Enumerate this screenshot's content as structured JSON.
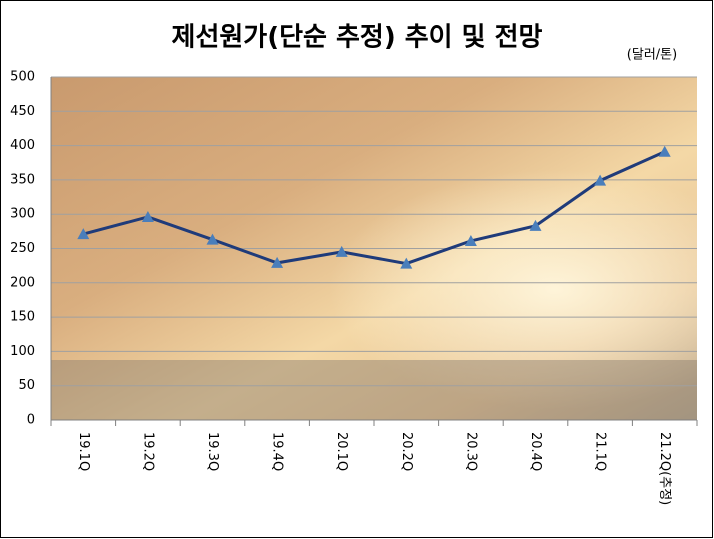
{
  "chart_data": {
    "type": "line",
    "title": "제선원가(단순 추정) 추이 및 전망",
    "unit_label": "(달러/톤)",
    "categories": [
      "19.1Q",
      "19.2Q",
      "19.3Q",
      "19.4Q",
      "20.1Q",
      "20.2Q",
      "20.3Q",
      "20.4Q",
      "21.1Q",
      "21.2Q(추정)"
    ],
    "values": [
      271,
      296,
      263,
      229,
      245,
      228,
      261,
      283,
      349,
      391
    ],
    "color": "#1f3b7a",
    "marker_color": "#4a7ebb",
    "ylim": [
      0,
      500
    ],
    "yticks": [
      0,
      50,
      100,
      150,
      200,
      250,
      300,
      350,
      400,
      450,
      500
    ],
    "grid": true
  }
}
